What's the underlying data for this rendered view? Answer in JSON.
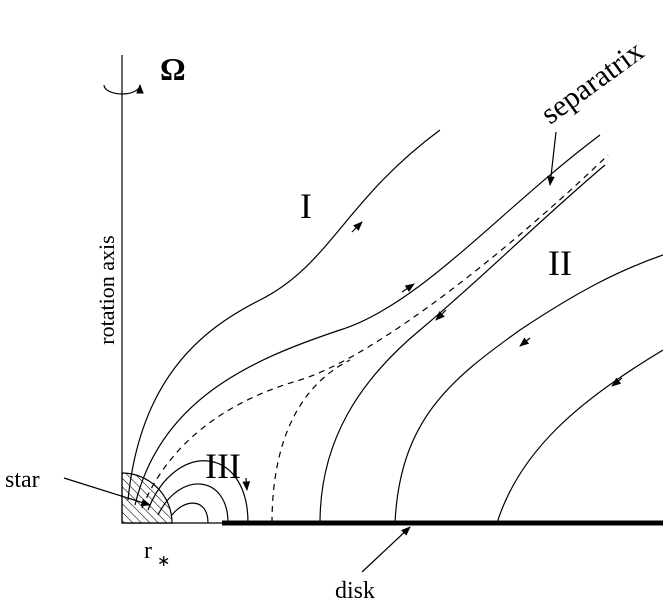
{
  "omega": "Ω",
  "separatrix": "separatrix",
  "regions": [
    "I",
    "II",
    "III"
  ],
  "axis_label": "rotation axis",
  "star": "star",
  "radius": {
    "symbol": "r",
    "subscript": "∗"
  },
  "disk": "disk"
}
